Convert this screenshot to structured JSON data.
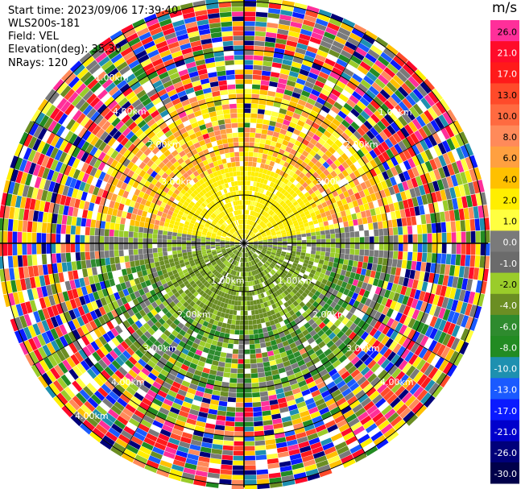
{
  "header": {
    "start_time": "Start time: 2023/09/06 17:39:40",
    "site": "WLS200s-181",
    "field": "Field: VEL",
    "elevation": "Elevation(deg): 35.30",
    "nrays": "NRays: 120"
  },
  "colorbar": {
    "unit": "m/s",
    "ticks": [
      "26.0",
      "21.0",
      "17.0",
      "13.0",
      "10.0",
      "8.0",
      "6.0",
      "4.0",
      "2.0",
      "1.0",
      "0.0",
      "-1.0",
      "-2.0",
      "-4.0",
      "-6.0",
      "-8.0",
      "-10.0",
      "-13.0",
      "-17.0",
      "-21.0",
      "-26.0",
      "-30.0"
    ],
    "colors": [
      "#ff2f9a",
      "#ff0b2a",
      "#ff1a1a",
      "#ff4a2a",
      "#ff6a40",
      "#ff8a5a",
      "#ffa040",
      "#ffc000",
      "#ffee00",
      "#ffff40",
      "#7a7a7a",
      "#6b6b6b",
      "#9acc2a",
      "#6b8e23",
      "#2e8b2e",
      "#228b22",
      "#1e90b0",
      "#1a5aff",
      "#0a1aff",
      "#0000cc",
      "#00007a",
      "#00004a"
    ]
  },
  "chart_data": {
    "type": "heatmap",
    "description_free": true,
    "field": "VEL",
    "elevation_deg": 35.3,
    "nrays": 120,
    "range_labels": [
      "1.00km",
      "1.00km",
      "2.00km",
      "2.00km",
      "3.00km",
      "3.00km",
      "4.00km",
      "4.00km",
      "1.00km",
      "2.00km",
      "3.00km",
      "4.00km",
      "1.00km",
      "2.00km",
      "3.00km",
      "4.00km"
    ],
    "value_range": [
      -30.0,
      26.0
    ]
  }
}
